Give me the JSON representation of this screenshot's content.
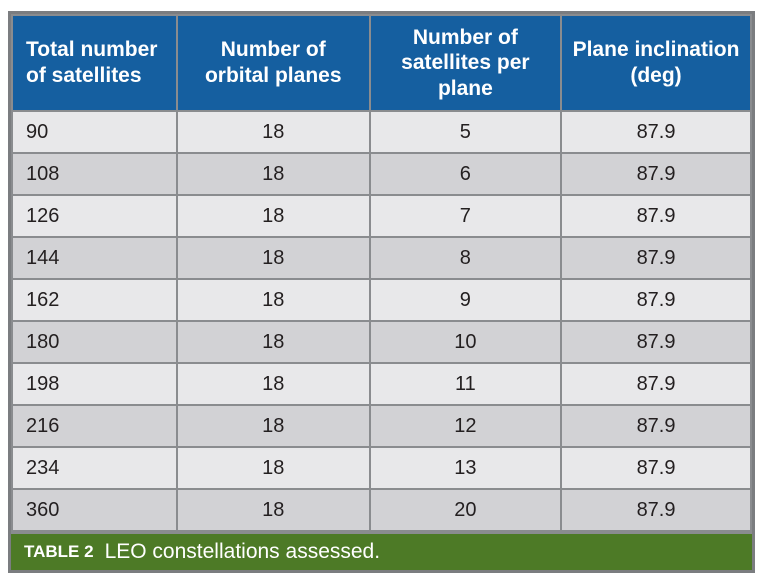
{
  "table": {
    "headers": [
      "Total number of satellites",
      "Number of orbital planes",
      "Number of satellites per plane",
      "Plane inclination (deg)"
    ],
    "rows": [
      [
        "90",
        "18",
        "5",
        "87.9"
      ],
      [
        "108",
        "18",
        "6",
        "87.9"
      ],
      [
        "126",
        "18",
        "7",
        "87.9"
      ],
      [
        "144",
        "18",
        "8",
        "87.9"
      ],
      [
        "162",
        "18",
        "9",
        "87.9"
      ],
      [
        "180",
        "18",
        "10",
        "87.9"
      ],
      [
        "198",
        "18",
        "11",
        "87.9"
      ],
      [
        "216",
        "18",
        "12",
        "87.9"
      ],
      [
        "234",
        "18",
        "13",
        "87.9"
      ],
      [
        "360",
        "18",
        "20",
        "87.9"
      ]
    ],
    "caption": {
      "label": "TABLE 2",
      "text": "LEO constellations assessed."
    }
  },
  "colors": {
    "header_bg": "#155FA0",
    "caption_bg": "#4D7A26",
    "row_light": "#E8E8EA",
    "row_dark": "#D2D2D5",
    "border": "#8A8C8F",
    "outer_border": "#7B7D80",
    "cell_text": "#231F20"
  },
  "chart_data": {
    "type": "table",
    "title": "TABLE 2  LEO constellations assessed.",
    "columns": [
      "Total number of satellites",
      "Number of orbital planes",
      "Number of satellites per plane",
      "Plane inclination (deg)"
    ],
    "rows": [
      [
        90,
        18,
        5,
        87.9
      ],
      [
        108,
        18,
        6,
        87.9
      ],
      [
        126,
        18,
        7,
        87.9
      ],
      [
        144,
        18,
        8,
        87.9
      ],
      [
        162,
        18,
        9,
        87.9
      ],
      [
        180,
        18,
        10,
        87.9
      ],
      [
        198,
        18,
        11,
        87.9
      ],
      [
        216,
        18,
        12,
        87.9
      ],
      [
        234,
        18,
        13,
        87.9
      ],
      [
        360,
        18,
        20,
        87.9
      ]
    ]
  }
}
